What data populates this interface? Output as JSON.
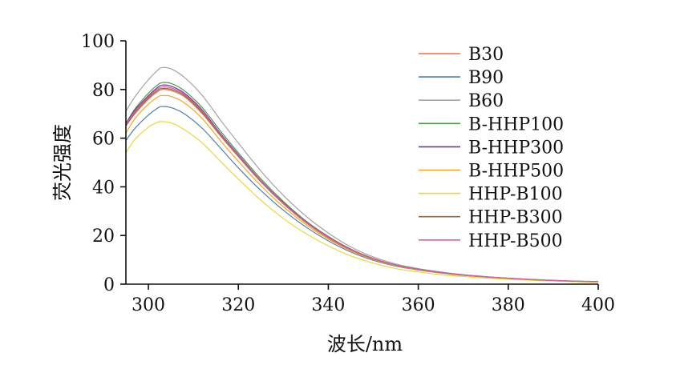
{
  "chart_data": {
    "type": "line",
    "title": "",
    "xlabel": "波长/nm",
    "ylabel": "荧光强度",
    "xlim": [
      295,
      400
    ],
    "ylim": [
      0,
      100
    ],
    "xticks": [
      300,
      320,
      340,
      360,
      380,
      400
    ],
    "yticks": [
      0,
      20,
      40,
      60,
      80,
      100
    ],
    "grid": false,
    "legend_position": "top-right",
    "x": [
      295,
      297,
      300,
      302,
      303,
      305,
      308,
      312,
      316,
      320,
      325,
      330,
      335,
      340,
      345,
      350,
      355,
      360,
      365,
      370,
      375,
      380,
      385,
      390,
      395,
      400
    ],
    "series": [
      {
        "name": "B30",
        "color": "#e8734a",
        "values": [
          65,
          70,
          76,
          79,
          80,
          79.6,
          77,
          70,
          61,
          52.4,
          42,
          33,
          25.3,
          19,
          14,
          10.4,
          7.8,
          6.1,
          4.8,
          3.8,
          3.0,
          2.4,
          1.9,
          1.5,
          1.2,
          1.0
        ]
      },
      {
        "name": "B90",
        "color": "#4d7fb0",
        "values": [
          59,
          64,
          69.5,
          72.3,
          73,
          72.6,
          70,
          64,
          56,
          47.8,
          38.5,
          30.4,
          23.5,
          17.8,
          13.2,
          9.8,
          7.4,
          5.8,
          4.6,
          3.6,
          2.9,
          2.3,
          1.8,
          1.4,
          1.1,
          0.9
        ]
      },
      {
        "name": "B60",
        "color": "#a3a3a3",
        "values": [
          71,
          77,
          84,
          87.8,
          89,
          88.5,
          85,
          77.5,
          67.5,
          58,
          46.5,
          36.5,
          28,
          21,
          15.3,
          11.2,
          8.3,
          6.4,
          5.0,
          3.9,
          3.1,
          2.5,
          2.0,
          1.6,
          1.3,
          1.1
        ]
      },
      {
        "name": "B-HHP100",
        "color": "#4a9a4a",
        "values": [
          66,
          72,
          78.5,
          81.8,
          82.8,
          82.5,
          79.5,
          72.5,
          63,
          54,
          43.3,
          34,
          26,
          19.6,
          14.4,
          10.6,
          7.9,
          6.2,
          4.9,
          3.8,
          3.0,
          2.4,
          1.9,
          1.5,
          1.2,
          1.0
        ]
      },
      {
        "name": "B-HHP300",
        "color": "#6a3d9a",
        "values": [
          66,
          71.5,
          77.5,
          80.8,
          81.8,
          81.4,
          78.5,
          71.5,
          62,
          53.2,
          42.6,
          33.5,
          25.7,
          19.4,
          14.3,
          10.5,
          7.8,
          6.1,
          4.8,
          3.8,
          3.0,
          2.4,
          1.9,
          1.5,
          1.2,
          1.0
        ]
      },
      {
        "name": "B-HHP500",
        "color": "#f5a623",
        "values": [
          62,
          68,
          74,
          76.8,
          77.5,
          77.2,
          74.5,
          68,
          59,
          50.5,
          40.5,
          31.8,
          24.5,
          18.5,
          13.7,
          10.1,
          7.6,
          5.9,
          4.7,
          3.7,
          2.9,
          2.3,
          1.8,
          1.4,
          1.1,
          0.9
        ]
      },
      {
        "name": "HHP-B100",
        "color": "#e8d83a",
        "values": [
          54,
          59.5,
          64.5,
          66.5,
          66.8,
          66.3,
          63.5,
          58,
          50.5,
          43.2,
          34.5,
          27,
          20.8,
          15.7,
          11.6,
          8.6,
          6.4,
          5.0,
          3.9,
          3.1,
          2.5,
          2.0,
          1.6,
          1.3,
          1.0,
          0.8
        ]
      },
      {
        "name": "HHP-B300",
        "color": "#8b6a4e",
        "values": [
          65,
          70.5,
          76.5,
          79.6,
          80.4,
          80.1,
          77.5,
          70.5,
          61.2,
          52.6,
          42.2,
          33.2,
          25.5,
          19.2,
          14.1,
          10.4,
          7.8,
          6.1,
          4.8,
          3.8,
          3.0,
          2.4,
          1.9,
          1.5,
          1.2,
          1.0
        ]
      },
      {
        "name": "HHP-B500",
        "color": "#e35aa0",
        "values": [
          65.5,
          71,
          77,
          80.2,
          81,
          80.7,
          78,
          71,
          61.6,
          52.9,
          42.4,
          33.3,
          25.6,
          19.3,
          14.2,
          10.5,
          7.8,
          6.1,
          4.8,
          3.8,
          3.0,
          2.4,
          1.9,
          1.5,
          1.2,
          1.0
        ]
      }
    ]
  }
}
